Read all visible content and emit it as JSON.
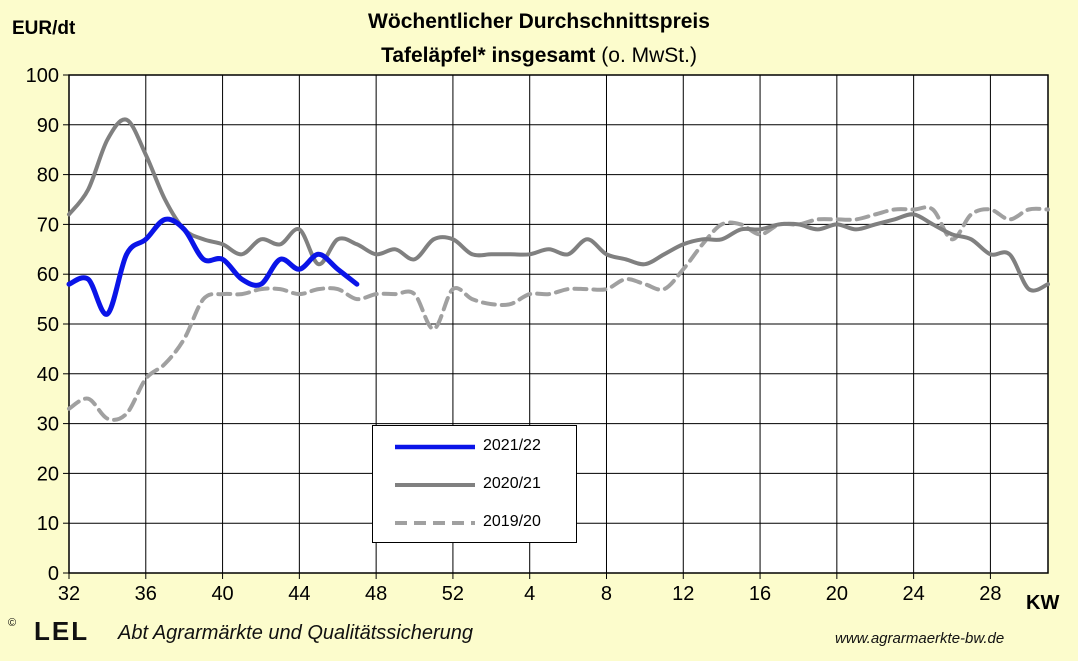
{
  "chart_data": {
    "type": "line",
    "title": "Wöchentlicher Durchschnittspreis",
    "subtitle_bold": "Tafeläpfel* insgesamt",
    "subtitle_normal": "(o. MwSt.)",
    "ylabel": "EUR/dt",
    "xlabel": "KW",
    "ylim": [
      0,
      100
    ],
    "yticks": [
      0,
      10,
      20,
      30,
      40,
      50,
      60,
      70,
      80,
      90,
      100
    ],
    "xtick_labels": [
      "32",
      "36",
      "40",
      "44",
      "48",
      "52",
      "4",
      "8",
      "12",
      "16",
      "20",
      "24",
      "28"
    ],
    "x_weeks_in_order": [
      "32",
      "33",
      "34",
      "35",
      "36",
      "37",
      "38",
      "39",
      "40",
      "41",
      "42",
      "43",
      "44",
      "45",
      "46",
      "47",
      "48",
      "49",
      "50",
      "51",
      "52",
      "1",
      "2",
      "3",
      "4",
      "5",
      "6",
      "7",
      "8",
      "9",
      "10",
      "11",
      "12",
      "13",
      "14",
      "15",
      "16",
      "17",
      "18",
      "19",
      "20",
      "21",
      "22",
      "23",
      "24",
      "25",
      "26",
      "27",
      "28",
      "29",
      "30",
      "31"
    ],
    "grid": true,
    "series": [
      {
        "name": "2021/22",
        "color": "#0a14e8",
        "style": "solid-thick",
        "values": [
          58,
          59,
          52,
          64,
          67,
          71,
          69,
          63,
          63,
          59,
          58,
          63,
          61,
          64,
          61,
          58
        ]
      },
      {
        "name": "2020/21",
        "color": "#808080",
        "style": "solid",
        "values": [
          72,
          77,
          87,
          91,
          84,
          75,
          69,
          67,
          66,
          64,
          67,
          66,
          69,
          62,
          67,
          66,
          64,
          65,
          63,
          67,
          67,
          64,
          64,
          64,
          64,
          65,
          64,
          67,
          64,
          63,
          62,
          64,
          66,
          67,
          67,
          69,
          69,
          70,
          70,
          69,
          70,
          69,
          70,
          71,
          72,
          70,
          68,
          67,
          64,
          64,
          57,
          58
        ]
      },
      {
        "name": "2019/20",
        "color": "#a0a0a0",
        "style": "dashed",
        "values": [
          33,
          35,
          31,
          32,
          39,
          42,
          47,
          55,
          56,
          56,
          57,
          57,
          56,
          57,
          57,
          55,
          56,
          56,
          56,
          49,
          57,
          55,
          54,
          54,
          56,
          56,
          57,
          57,
          57,
          59,
          58,
          57,
          61,
          66,
          70,
          70,
          68,
          70,
          70,
          71,
          71,
          71,
          72,
          73,
          73,
          73,
          67,
          72,
          73,
          71,
          73,
          73
        ]
      }
    ]
  },
  "footer": {
    "copyright": "©",
    "logo": "LEL",
    "department": "Abt  Agrarmärkte und Qualitätssicherung",
    "url": "www.agrarmaerkte-bw.de"
  }
}
